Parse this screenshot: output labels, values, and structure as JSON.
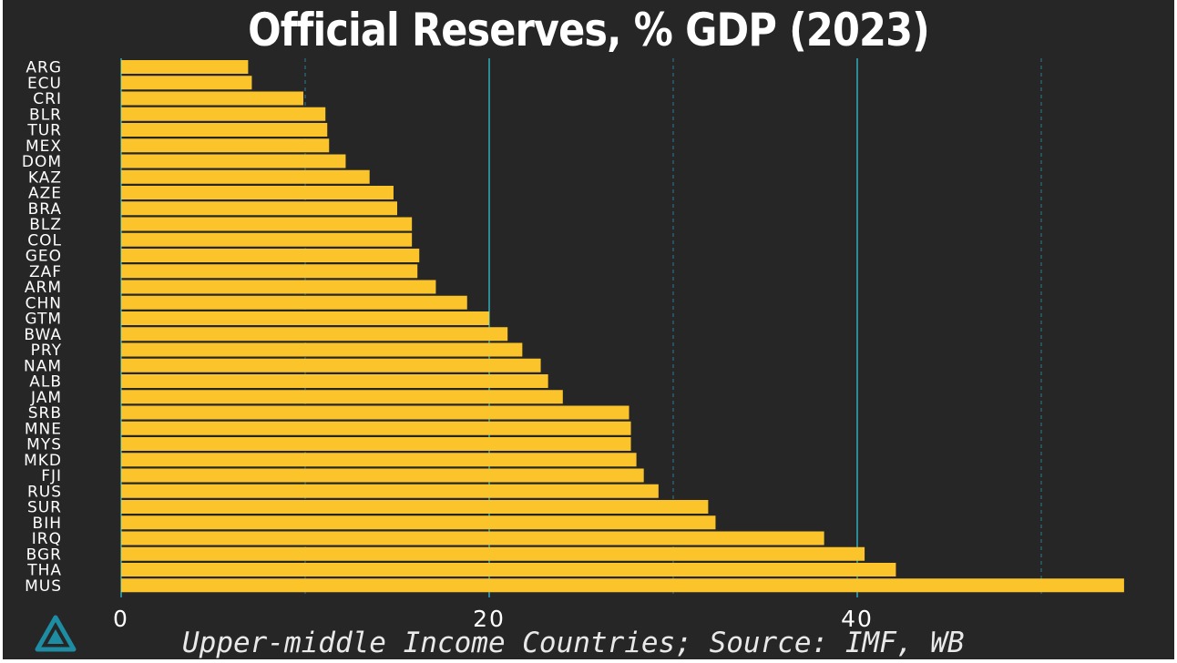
{
  "chart_data": {
    "type": "bar",
    "orientation": "horizontal",
    "title": "Official Reserves, % GDP (2023)",
    "categories": [
      "ARG",
      "ECU",
      "CRI",
      "BLR",
      "TUR",
      "MEX",
      "DOM",
      "KAZ",
      "AZE",
      "BRA",
      "BLZ",
      "COL",
      "GEO",
      "ZAF",
      "ARM",
      "CHN",
      "GTM",
      "BWA",
      "PRY",
      "NAM",
      "ALB",
      "JAM",
      "SRB",
      "MNE",
      "MYS",
      "MKD",
      "FJI",
      "RUS",
      "SUR",
      "BIH",
      "IRQ",
      "BGR",
      "THA",
      "MUS"
    ],
    "values": [
      6.9,
      7.1,
      9.9,
      11.1,
      11.2,
      11.3,
      12.2,
      13.5,
      14.8,
      15.0,
      15.8,
      15.8,
      16.2,
      16.1,
      17.1,
      18.8,
      20.0,
      21.0,
      21.8,
      22.8,
      23.2,
      24.0,
      27.6,
      27.7,
      27.7,
      28.0,
      28.4,
      29.2,
      31.9,
      32.3,
      38.2,
      40.4,
      42.1,
      54.5
    ],
    "xlim": [
      0,
      55
    ],
    "xticks": [
      0,
      20,
      40
    ],
    "xtick_labels": [
      "0",
      "20",
      "40"
    ],
    "minor_gridlines": [
      10,
      30,
      50
    ],
    "xlabel": "",
    "ylabel": "",
    "bar_color": "#FCC42B",
    "grid_major_color": "#2FA4B4",
    "grid_minor_color": "#2E7F96",
    "background_color": "#262626",
    "subtitle": "Upper-middle Income Countries; Source: IMF, WB"
  },
  "logo": {
    "icon": "triangle-logo-icon",
    "color": "#1E8CA3"
  }
}
